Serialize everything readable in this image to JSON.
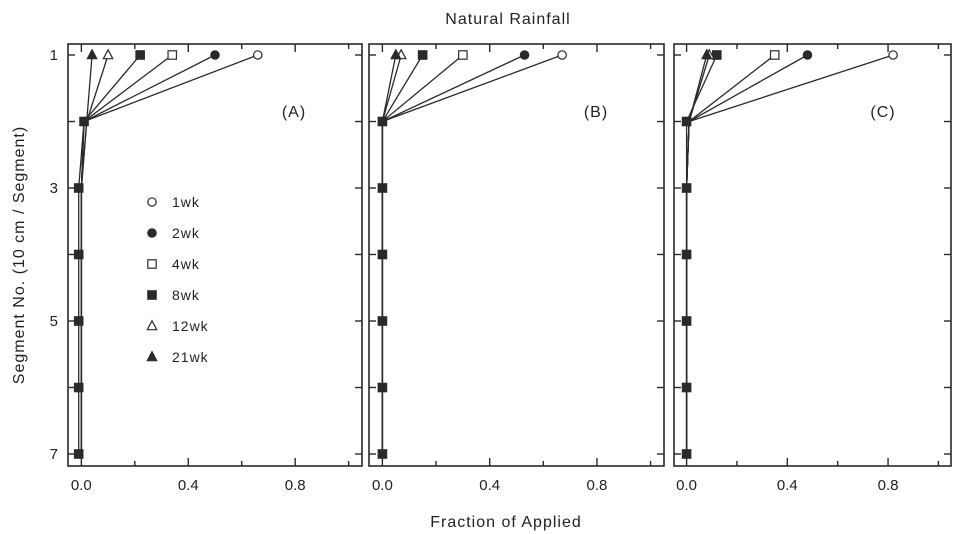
{
  "figure": {
    "title": "Natural Rainfall",
    "xlabel": "Fraction of Applied",
    "ylabel": "Segment No. (10 cm / Segment)"
  },
  "chart_data": {
    "type": "line",
    "title": "Natural Rainfall",
    "xlabel": "Fraction of Applied",
    "ylabel": "Segment No. (10 cm / Segment)",
    "xlim": [
      -0.05,
      1.05
    ],
    "ylim": [
      7.1,
      0.9
    ],
    "x_ticks": [
      0.0,
      0.4,
      0.8
    ],
    "x_tick_labels": [
      "0.0",
      "0.4",
      "0.8"
    ],
    "y_ticks": [
      1,
      3,
      5,
      7
    ],
    "y_tick_labels": [
      "1",
      "3",
      "5",
      "7"
    ],
    "y_axis_inverted": true,
    "grid": false,
    "legend_position": "left-center of panel A",
    "legend": [
      {
        "label": "1wk",
        "marker": "open-circle"
      },
      {
        "label": "2wk",
        "marker": "filled-circle"
      },
      {
        "label": "4wk",
        "marker": "open-square"
      },
      {
        "label": "8wk",
        "marker": "filled-square"
      },
      {
        "label": "12wk",
        "marker": "open-triangle"
      },
      {
        "label": "21wk",
        "marker": "filled-triangle"
      }
    ],
    "panels": [
      {
        "label": "(A)",
        "segments": [
          1,
          2,
          3,
          4,
          5,
          6,
          7
        ],
        "series": [
          {
            "marker": "open-circle",
            "values": [
              0.66,
              0.01,
              0.0,
              0.0,
              0.0,
              0.0,
              0.0
            ]
          },
          {
            "marker": "filled-circle",
            "values": [
              0.5,
              0.01,
              0.0,
              0.0,
              0.0,
              0.0,
              0.0
            ]
          },
          {
            "marker": "open-square",
            "values": [
              0.34,
              0.01,
              0.0,
              0.0,
              0.0,
              0.0,
              0.0
            ]
          },
          {
            "marker": "filled-square",
            "values": [
              0.22,
              0.01,
              -0.01,
              -0.01,
              -0.01,
              -0.01,
              -0.01
            ]
          },
          {
            "marker": "open-triangle",
            "values": [
              0.1,
              0.02,
              0.0,
              0.0,
              0.0,
              0.0,
              0.0
            ]
          },
          {
            "marker": "filled-triangle",
            "values": [
              0.04,
              0.02,
              0.0,
              0.0,
              0.0,
              0.0,
              0.0
            ]
          }
        ]
      },
      {
        "label": "(B)",
        "segments": [
          1,
          2,
          3,
          4,
          5,
          6,
          7
        ],
        "series": [
          {
            "marker": "open-circle",
            "values": [
              0.67,
              0.0,
              0.0,
              0.0,
              0.0,
              0.0,
              0.0
            ]
          },
          {
            "marker": "filled-circle",
            "values": [
              0.53,
              0.0,
              0.0,
              0.0,
              0.0,
              0.0,
              0.0
            ]
          },
          {
            "marker": "open-square",
            "values": [
              0.3,
              0.0,
              0.0,
              0.0,
              0.0,
              0.0,
              0.0
            ]
          },
          {
            "marker": "filled-square",
            "values": [
              0.15,
              0.0,
              0.0,
              0.0,
              0.0,
              0.0,
              0.0
            ]
          },
          {
            "marker": "open-triangle",
            "values": [
              0.07,
              0.0,
              0.0,
              0.0,
              0.0,
              0.0,
              0.0
            ]
          },
          {
            "marker": "filled-triangle",
            "values": [
              0.05,
              0.0,
              0.0,
              0.0,
              0.0,
              0.0,
              0.0
            ]
          }
        ]
      },
      {
        "label": "(C)",
        "segments": [
          1,
          2,
          3,
          4,
          5,
          6,
          7
        ],
        "series": [
          {
            "marker": "open-circle",
            "values": [
              0.82,
              0.01,
              0.0,
              0.0,
              0.0,
              0.0,
              0.0
            ]
          },
          {
            "marker": "filled-circle",
            "values": [
              0.48,
              0.01,
              0.0,
              0.0,
              0.0,
              0.0,
              0.0
            ]
          },
          {
            "marker": "open-square",
            "values": [
              0.35,
              0.01,
              0.0,
              0.0,
              0.0,
              0.0,
              0.0
            ]
          },
          {
            "marker": "filled-square",
            "values": [
              0.12,
              0.0,
              0.0,
              0.0,
              0.0,
              0.0,
              0.0
            ]
          },
          {
            "marker": "open-triangle",
            "values": [
              0.09,
              0.01,
              0.0,
              0.0,
              0.0,
              0.0,
              0.0
            ]
          },
          {
            "marker": "filled-triangle",
            "values": [
              0.08,
              0.01,
              0.0,
              0.0,
              0.0,
              0.0,
              0.0
            ]
          }
        ]
      }
    ]
  }
}
